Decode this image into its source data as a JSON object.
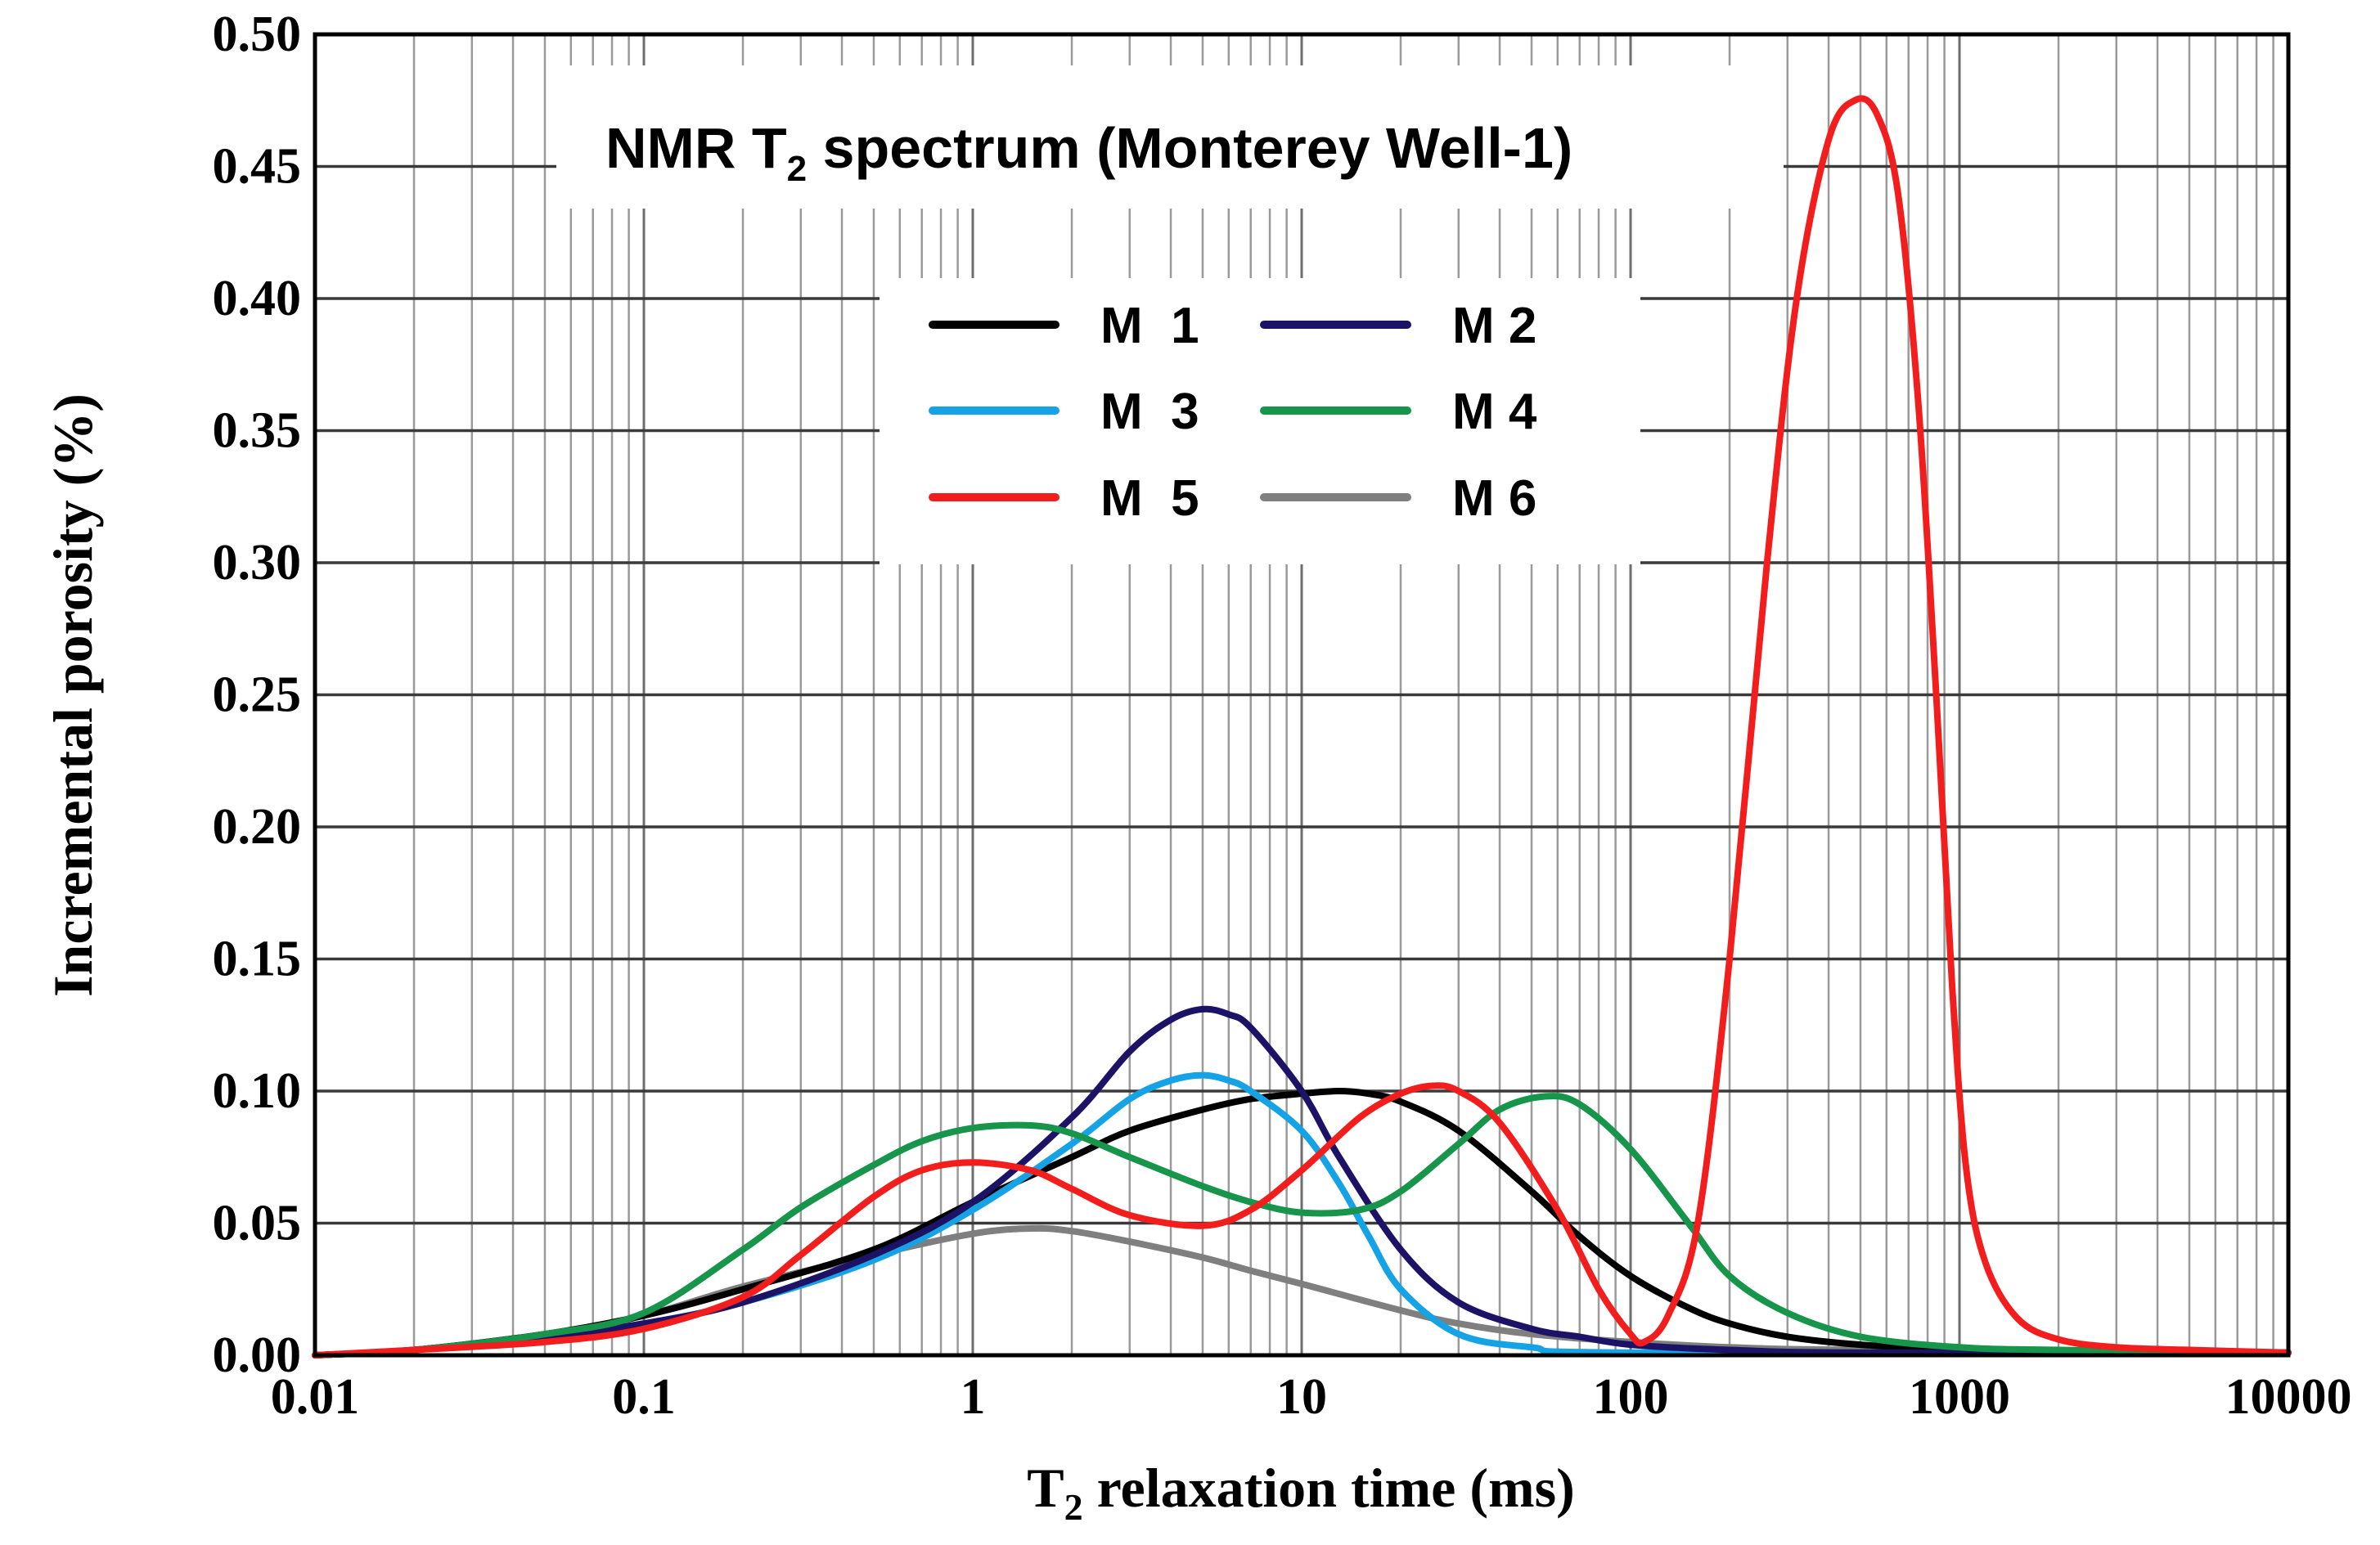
{
  "chart_data": {
    "type": "line",
    "title": "NMR T",
    "title_sub": "2",
    "title_rest": " spectrum (Monterey Well-1)",
    "xlabel": "T",
    "xlabel_sub": "2",
    "xlabel_rest": " relaxation time (ms)",
    "ylabel": "Incremental porosity (%)",
    "x_scale": "log",
    "xlim": [
      0.01,
      10000
    ],
    "ylim": [
      0,
      0.5
    ],
    "x_ticks": [
      0.01,
      0.1,
      1,
      10,
      100,
      1000,
      10000
    ],
    "x_tick_labels": [
      "0.01",
      "0.1",
      "1",
      "10",
      "100",
      "1000",
      "10000"
    ],
    "y_ticks": [
      0,
      0.05,
      0.1,
      0.15,
      0.2,
      0.25,
      0.3,
      0.35,
      0.4,
      0.45,
      0.5
    ],
    "y_tick_labels": [
      "0.00",
      "0.05",
      "0.10",
      "0.15",
      "0.20",
      "0.25",
      "0.30",
      "0.35",
      "0.40",
      "0.45",
      "0.50"
    ],
    "grid": true,
    "legend_position": "top-center",
    "series": [
      {
        "name": "M  1",
        "color": "#000000",
        "points": [
          [
            0.01,
            0
          ],
          [
            0.02,
            0.002
          ],
          [
            0.05,
            0.008
          ],
          [
            0.1,
            0.015
          ],
          [
            0.2,
            0.025
          ],
          [
            0.5,
            0.04
          ],
          [
            1,
            0.058
          ],
          [
            2,
            0.075
          ],
          [
            3,
            0.085
          ],
          [
            5,
            0.093
          ],
          [
            7,
            0.097
          ],
          [
            10,
            0.099
          ],
          [
            13,
            0.1
          ],
          [
            16,
            0.099
          ],
          [
            20,
            0.096
          ],
          [
            30,
            0.085
          ],
          [
            50,
            0.062
          ],
          [
            70,
            0.045
          ],
          [
            100,
            0.03
          ],
          [
            150,
            0.018
          ],
          [
            200,
            0.012
          ],
          [
            300,
            0.007
          ],
          [
            500,
            0.004
          ],
          [
            1000,
            0.002
          ],
          [
            2000,
            0.001
          ],
          [
            10000,
            0.001
          ]
        ]
      },
      {
        "name": "M 2",
        "color": "#1d1366",
        "points": [
          [
            0.01,
            0
          ],
          [
            0.02,
            0.002
          ],
          [
            0.05,
            0.007
          ],
          [
            0.1,
            0.012
          ],
          [
            0.2,
            0.02
          ],
          [
            0.5,
            0.038
          ],
          [
            1,
            0.058
          ],
          [
            2,
            0.09
          ],
          [
            3,
            0.115
          ],
          [
            4,
            0.127
          ],
          [
            5,
            0.131
          ],
          [
            6,
            0.129
          ],
          [
            7,
            0.124
          ],
          [
            10,
            0.1
          ],
          [
            13,
            0.075
          ],
          [
            20,
            0.04
          ],
          [
            30,
            0.02
          ],
          [
            50,
            0.01
          ],
          [
            70,
            0.007
          ],
          [
            100,
            0.004
          ],
          [
            200,
            0.002
          ],
          [
            500,
            0.001
          ],
          [
            10000,
            0.001
          ]
        ]
      },
      {
        "name": "M  3",
        "color": "#15a3e6",
        "points": [
          [
            0.01,
            0
          ],
          [
            0.02,
            0.002
          ],
          [
            0.05,
            0.007
          ],
          [
            0.1,
            0.012
          ],
          [
            0.2,
            0.02
          ],
          [
            0.5,
            0.036
          ],
          [
            1,
            0.055
          ],
          [
            2,
            0.08
          ],
          [
            3,
            0.097
          ],
          [
            4,
            0.104
          ],
          [
            5,
            0.106
          ],
          [
            6,
            0.104
          ],
          [
            7,
            0.1
          ],
          [
            10,
            0.085
          ],
          [
            13,
            0.065
          ],
          [
            16,
            0.045
          ],
          [
            20,
            0.025
          ],
          [
            30,
            0.008
          ],
          [
            50,
            0.003
          ],
          [
            100,
            0.001
          ],
          [
            10000,
            0.001
          ]
        ]
      },
      {
        "name": "M 4",
        "color": "#16954b",
        "points": [
          [
            0.01,
            0
          ],
          [
            0.02,
            0.002
          ],
          [
            0.05,
            0.008
          ],
          [
            0.1,
            0.016
          ],
          [
            0.2,
            0.04
          ],
          [
            0.3,
            0.056
          ],
          [
            0.5,
            0.072
          ],
          [
            0.7,
            0.081
          ],
          [
            1,
            0.086
          ],
          [
            1.5,
            0.087
          ],
          [
            2,
            0.084
          ],
          [
            3,
            0.075
          ],
          [
            5,
            0.064
          ],
          [
            7,
            0.058
          ],
          [
            10,
            0.054
          ],
          [
            15,
            0.055
          ],
          [
            20,
            0.062
          ],
          [
            30,
            0.08
          ],
          [
            40,
            0.093
          ],
          [
            55,
            0.098
          ],
          [
            70,
            0.095
          ],
          [
            100,
            0.078
          ],
          [
            150,
            0.05
          ],
          [
            200,
            0.03
          ],
          [
            300,
            0.016
          ],
          [
            500,
            0.007
          ],
          [
            1000,
            0.003
          ],
          [
            2000,
            0.002
          ],
          [
            10000,
            0.001
          ]
        ]
      },
      {
        "name": "M  5",
        "color": "#f21d1d",
        "points": [
          [
            0.01,
            0
          ],
          [
            0.02,
            0.002
          ],
          [
            0.05,
            0.005
          ],
          [
            0.1,
            0.01
          ],
          [
            0.2,
            0.022
          ],
          [
            0.3,
            0.038
          ],
          [
            0.5,
            0.06
          ],
          [
            0.7,
            0.07
          ],
          [
            1,
            0.073
          ],
          [
            1.5,
            0.07
          ],
          [
            2,
            0.063
          ],
          [
            3,
            0.053
          ],
          [
            5,
            0.049
          ],
          [
            7,
            0.055
          ],
          [
            10,
            0.07
          ],
          [
            15,
            0.09
          ],
          [
            20,
            0.099
          ],
          [
            25,
            0.102
          ],
          [
            30,
            0.1
          ],
          [
            40,
            0.088
          ],
          [
            60,
            0.055
          ],
          [
            80,
            0.025
          ],
          [
            100,
            0.008
          ],
          [
            110,
            0.005
          ],
          [
            130,
            0.015
          ],
          [
            160,
            0.05
          ],
          [
            200,
            0.15
          ],
          [
            260,
            0.3
          ],
          [
            320,
            0.4
          ],
          [
            400,
            0.46
          ],
          [
            480,
            0.475
          ],
          [
            560,
            0.47
          ],
          [
            650,
            0.44
          ],
          [
            750,
            0.36
          ],
          [
            850,
            0.25
          ],
          [
            950,
            0.14
          ],
          [
            1050,
            0.07
          ],
          [
            1200,
            0.035
          ],
          [
            1500,
            0.014
          ],
          [
            2000,
            0.006
          ],
          [
            3000,
            0.003
          ],
          [
            5000,
            0.002
          ],
          [
            10000,
            0.001
          ]
        ]
      },
      {
        "name": "M 6",
        "color": "#7f7f7f",
        "points": [
          [
            0.01,
            0
          ],
          [
            0.02,
            0.002
          ],
          [
            0.05,
            0.008
          ],
          [
            0.1,
            0.015
          ],
          [
            0.2,
            0.026
          ],
          [
            0.5,
            0.038
          ],
          [
            1,
            0.046
          ],
          [
            1.5,
            0.048
          ],
          [
            2,
            0.047
          ],
          [
            3,
            0.043
          ],
          [
            5,
            0.037
          ],
          [
            7,
            0.032
          ],
          [
            10,
            0.027
          ],
          [
            20,
            0.017
          ],
          [
            30,
            0.012
          ],
          [
            50,
            0.008
          ],
          [
            100,
            0.005
          ],
          [
            200,
            0.003
          ],
          [
            500,
            0.002
          ],
          [
            10000,
            0.001
          ]
        ]
      }
    ]
  }
}
